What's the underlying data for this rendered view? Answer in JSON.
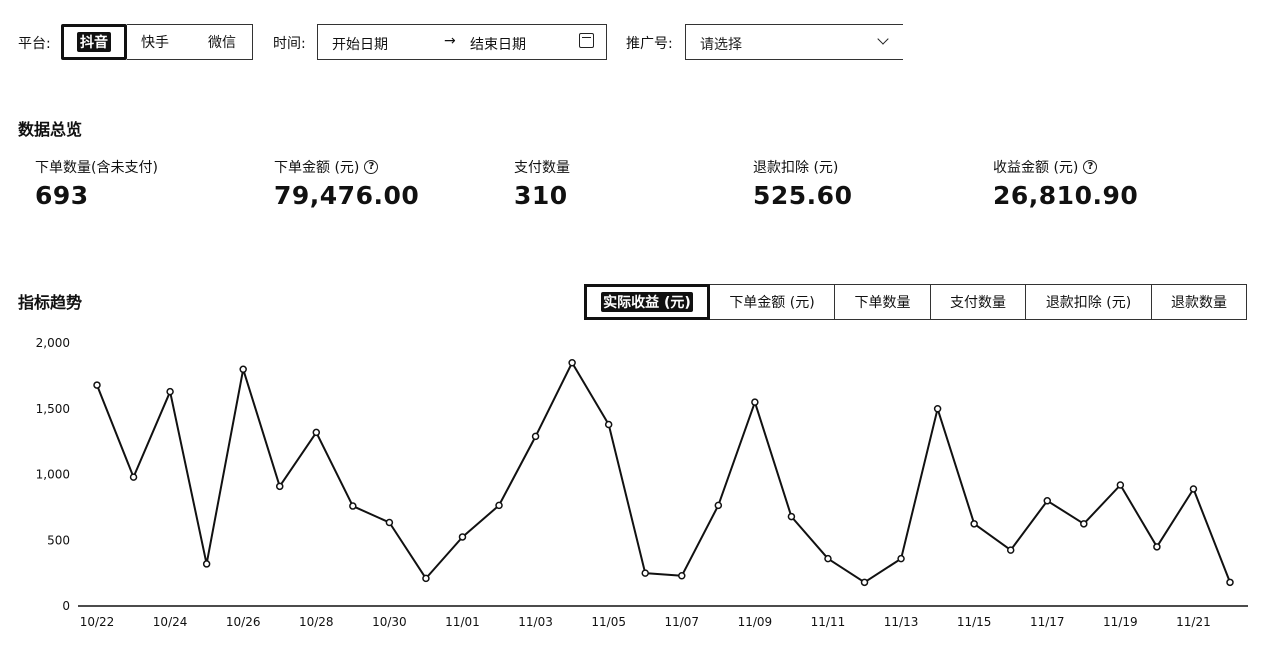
{
  "filters": {
    "platform_label": "平台:",
    "platforms": [
      "抖音",
      "快手",
      "微信"
    ],
    "active_platform": "抖音",
    "time_label": "时间:",
    "start_placeholder": "开始日期",
    "arrow": "→",
    "end_placeholder": "结束日期",
    "promo_label": "推广号:",
    "promo_placeholder": "请选择"
  },
  "overview": {
    "title": "数据总览",
    "stats": [
      {
        "label": "下单数量(含未支付)",
        "value": "693",
        "has_help": false
      },
      {
        "label": "下单金额 (元)",
        "value": "79,476.00",
        "has_help": true
      },
      {
        "label": "支付数量",
        "value": "310",
        "has_help": false
      },
      {
        "label": "退款扣除 (元)",
        "value": "525.60",
        "has_help": false
      },
      {
        "label": "收益金额 (元)",
        "value": "26,810.90",
        "has_help": true
      }
    ],
    "help_icon": "?"
  },
  "trend": {
    "title": "指标趋势",
    "tabs": [
      "实际收益 (元)",
      "下单金额 (元)",
      "下单数量",
      "支付数量",
      "退款扣除 (元)",
      "退款数量"
    ],
    "active_tab": 0
  },
  "chart_data": {
    "type": "line",
    "x": [
      "10/22",
      "10/23",
      "10/24",
      "10/25",
      "10/26",
      "10/27",
      "10/28",
      "10/29",
      "10/30",
      "10/31",
      "11/01",
      "11/02",
      "11/03",
      "11/04",
      "11/05",
      "11/06",
      "11/07",
      "11/08",
      "11/09",
      "11/10",
      "11/11",
      "11/12",
      "11/13",
      "11/14",
      "11/15",
      "11/16",
      "11/17",
      "11/18",
      "11/19",
      "11/20",
      "11/21",
      "11/22"
    ],
    "x_tick_labels": [
      "10/22",
      "10/24",
      "10/26",
      "10/28",
      "10/30",
      "11/01",
      "11/03",
      "11/05",
      "11/07",
      "11/09",
      "11/11",
      "11/13",
      "11/15",
      "11/17",
      "11/19",
      "11/21"
    ],
    "series": [
      {
        "values": [
          1680,
          980,
          1630,
          320,
          1800,
          910,
          1320,
          760,
          635,
          210,
          525,
          765,
          1290,
          1850,
          1380,
          250,
          230,
          765,
          1550,
          680,
          360,
          180,
          360,
          1500,
          625,
          425,
          800,
          625,
          920,
          450,
          890,
          180
        ]
      }
    ],
    "ylim": [
      0,
      2000
    ],
    "y_ticks": [
      "2,000",
      "1,500",
      "1,000",
      "500",
      "0"
    ],
    "y_tick_values": [
      2000,
      1500,
      1000,
      500,
      0
    ],
    "grid": false,
    "line_color": "#111111",
    "marker_fill": "#ffffff"
  }
}
